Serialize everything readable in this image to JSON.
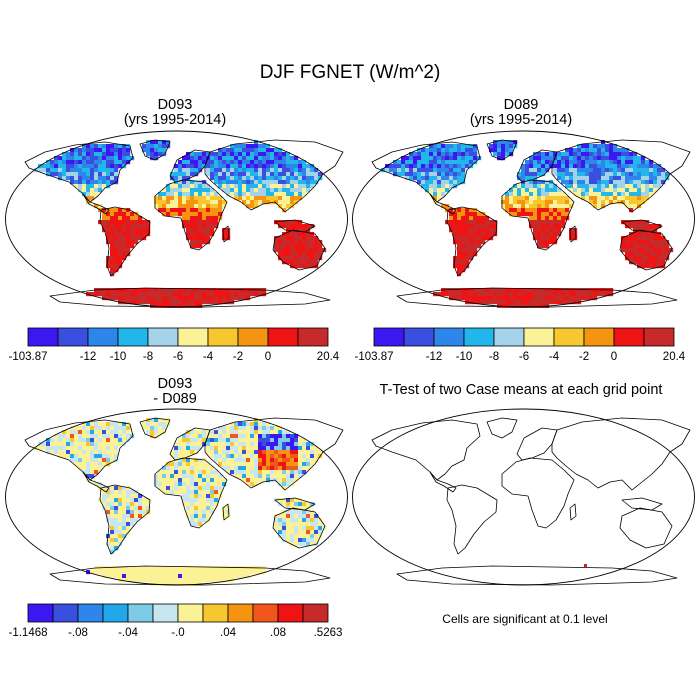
{
  "figure": {
    "title": "DJF FGNET (W/m^2)"
  },
  "panels": [
    {
      "title_line1": "D093",
      "title_line2": "(yrs 1995-2014)",
      "kind": "field"
    },
    {
      "title_line1": "D089",
      "title_line2": "(yrs 1995-2014)",
      "kind": "field"
    },
    {
      "title_line1": "D093",
      "title_line2": "- D089",
      "kind": "difference"
    },
    {
      "title_line1": "T-Test of two Case means at each grid point",
      "title_line2": "",
      "kind": "ttest",
      "note": "Cells are significant at 0.1 level"
    }
  ],
  "colorbars": {
    "field": {
      "colors": [
        "#3c17f2",
        "#3a4ee0",
        "#2f86ea",
        "#22b6ea",
        "#a4d2e8",
        "#fbf297",
        "#f7c72f",
        "#f59410",
        "#ef1414",
        "#c72a2a"
      ],
      "labels": [
        "-103.87",
        "",
        "-12",
        "-10",
        "-8",
        "-6",
        "-4",
        "-2",
        "0",
        "",
        "20.4"
      ]
    },
    "difference": {
      "colors": [
        "#3c17f2",
        "#3a4ee0",
        "#2f86ea",
        "#22a8ea",
        "#7ecbe8",
        "#c7e6ef",
        "#fbf297",
        "#f7c72f",
        "#f59410",
        "#f2561c",
        "#ef1414",
        "#c72a2a"
      ],
      "labels": [
        "-1.1468",
        "",
        "-.08",
        "",
        "-.04",
        "",
        "-.0",
        "",
        ".04",
        "",
        ".08",
        "",
        ".5263"
      ]
    }
  },
  "legend_colors": {
    "cold": "#3c17f2",
    "mid_cold": "#22b6ea",
    "neutral": "#fbf297",
    "warm": "#f59410",
    "hot": "#c72a2a",
    "coastline": "#000000"
  }
}
